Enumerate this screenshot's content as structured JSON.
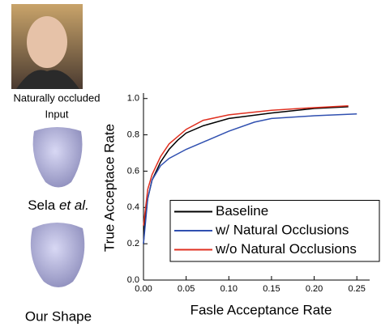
{
  "panel": {
    "input_caption": [
      "Naturally occluded",
      "Input"
    ],
    "method1": {
      "name": "Sela",
      "suffix": "et al."
    },
    "method2": "Our Shape"
  },
  "chart_data": {
    "type": "line",
    "x_label": "Fasle Acceptance Rate",
    "y_label": "True Acceptace Rate",
    "xlim": [
      0,
      0.265
    ],
    "ylim": [
      0,
      1.03
    ],
    "xticks": [
      {
        "value": 0,
        "label": "0.00"
      },
      0.05,
      {
        "value": 0.1,
        "label": "0.10"
      },
      0.15,
      {
        "value": 0.2,
        "label": "0.20"
      },
      0.25
    ],
    "yticks": [
      {
        "value": 0,
        "label": "0.0"
      },
      0.2,
      0.4,
      0.6,
      0.8,
      {
        "value": 1,
        "label": "1.0"
      }
    ],
    "legend": "lower right",
    "series": [
      {
        "name": "Baseline",
        "color": "#000000",
        "x": [
          0,
          0.002,
          0.005,
          0.01,
          0.02,
          0.03,
          0.04,
          0.05,
          0.07,
          0.1,
          0.15,
          0.2,
          0.24
        ],
        "values": [
          0.2,
          0.35,
          0.45,
          0.55,
          0.65,
          0.72,
          0.77,
          0.81,
          0.85,
          0.89,
          0.92,
          0.945,
          0.955
        ]
      },
      {
        "name": "w/ Natural Occlusions",
        "color": "#3050b0",
        "x": [
          0,
          0.005,
          0.01,
          0.02,
          0.03,
          0.05,
          0.07,
          0.1,
          0.13,
          0.15,
          0.2,
          0.25
        ],
        "values": [
          0.2,
          0.45,
          0.55,
          0.63,
          0.67,
          0.72,
          0.76,
          0.82,
          0.87,
          0.89,
          0.905,
          0.915
        ]
      },
      {
        "name": "w/o Natural Occlusions",
        "color": "#e03020",
        "x": [
          0,
          0.005,
          0.01,
          0.02,
          0.03,
          0.05,
          0.07,
          0.1,
          0.15,
          0.2,
          0.24
        ],
        "values": [
          0.3,
          0.5,
          0.58,
          0.68,
          0.75,
          0.83,
          0.88,
          0.91,
          0.935,
          0.95,
          0.96
        ]
      }
    ]
  }
}
